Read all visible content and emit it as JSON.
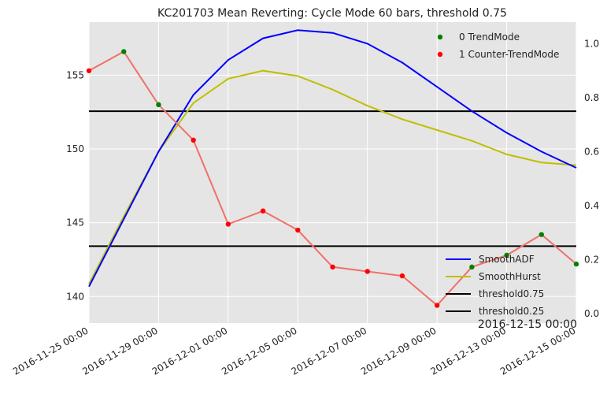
{
  "chart_data": {
    "type": "line",
    "title": "KC201703 Mean Reverting: Cycle Mode 60 bars, threshold 0.75",
    "corner_label": "2016-12-15 00:00",
    "x_tick_labels": [
      "2016-11-25 00:00",
      "2016-11-29 00:00",
      "2016-12-01 00:00",
      "2016-12-05 00:00",
      "2016-12-07 00:00",
      "2016-12-09 00:00",
      "2016-12-13 00:00",
      "2016-12-15 00:00"
    ],
    "categories": [
      "2016-11-25 00:00",
      "",
      "2016-11-29 00:00",
      "",
      "2016-12-01 00:00",
      "",
      "2016-12-05 00:00",
      "",
      "2016-12-07 00:00",
      "",
      "2016-12-09 00:00",
      "",
      "2016-12-13 00:00",
      "",
      "2016-12-15 00:00"
    ],
    "left_axis": {
      "ylim": [
        138.2,
        158.6
      ],
      "ticks": [
        140,
        145,
        150,
        155
      ]
    },
    "right_axis": {
      "ylim": [
        -0.035,
        1.08
      ],
      "ticks": [
        "0.0",
        "0.2",
        "0.4",
        "0.6",
        "0.8",
        "1.0"
      ]
    },
    "grid": true,
    "background": "#e5e5e5",
    "legend_top": {
      "placement": "top-right",
      "entries": [
        {
          "label": "0 TrendMode",
          "color": "#008000"
        },
        {
          "label": "1 Counter-TrendMode",
          "color": "#ff0000"
        }
      ]
    },
    "legend_bottom": {
      "placement": "bottom-right",
      "entries": [
        {
          "label": "SmoothADF",
          "color": "#0000ff"
        },
        {
          "label": "SmoothHurst",
          "color": "#bfbf00"
        },
        {
          "label": "threshold0.75",
          "color": "#000000"
        },
        {
          "label": "threshold0.25",
          "color": "#000000"
        }
      ]
    },
    "price": {
      "axis": "left",
      "color": "#f0706a",
      "values": [
        155.3,
        156.6,
        153.0,
        150.6,
        144.9,
        145.8,
        144.5,
        142.0,
        141.7,
        141.4,
        139.4,
        142.0,
        142.8,
        144.2,
        142.2
      ],
      "modes": [
        1,
        0,
        0,
        1,
        1,
        1,
        1,
        1,
        1,
        1,
        1,
        0,
        0,
        0,
        0
      ]
    },
    "series": [
      {
        "name": "SmoothADF",
        "axis": "right",
        "color": "#0000ff",
        "values": [
          0.1,
          0.35,
          0.6,
          0.81,
          0.94,
          1.02,
          1.05,
          1.04,
          1.0,
          0.93,
          0.84,
          0.75,
          0.67,
          0.6,
          0.54
        ]
      },
      {
        "name": "SmoothHurst",
        "axis": "right",
        "color": "#bfbf00",
        "values": [
          0.11,
          0.36,
          0.6,
          0.78,
          0.87,
          0.9,
          0.88,
          0.83,
          0.77,
          0.72,
          0.68,
          0.64,
          0.59,
          0.56,
          0.55
        ]
      },
      {
        "name": "threshold0.75",
        "axis": "right",
        "color": "#000000",
        "values": [
          0.75,
          0.75,
          0.75,
          0.75,
          0.75,
          0.75,
          0.75,
          0.75,
          0.75,
          0.75,
          0.75,
          0.75,
          0.75,
          0.75,
          0.75
        ]
      },
      {
        "name": "threshold0.25",
        "axis": "right",
        "color": "#000000",
        "values": [
          0.25,
          0.25,
          0.25,
          0.25,
          0.25,
          0.25,
          0.25,
          0.25,
          0.25,
          0.25,
          0.25,
          0.25,
          0.25,
          0.25,
          0.25
        ]
      }
    ]
  }
}
